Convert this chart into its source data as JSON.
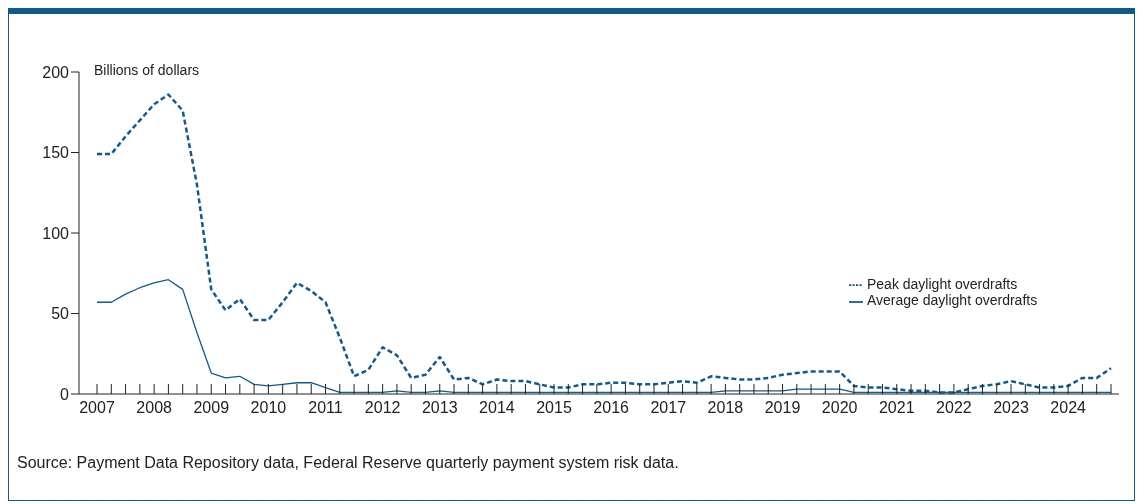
{
  "chart_data": {
    "type": "line",
    "ylabel": "Billions of dollars",
    "categories": [
      "2007",
      null,
      null,
      null,
      "2008",
      null,
      null,
      null,
      "2009",
      null,
      null,
      null,
      "2010",
      null,
      null,
      null,
      "2011",
      null,
      null,
      null,
      "2012",
      null,
      null,
      null,
      "2013",
      null,
      null,
      null,
      "2014",
      null,
      null,
      null,
      "2015",
      null,
      null,
      null,
      "2016",
      null,
      null,
      null,
      "2017",
      null,
      null,
      null,
      "2018",
      null,
      null,
      null,
      "2019",
      null,
      null,
      null,
      "2020",
      null,
      null,
      null,
      "2021",
      null,
      null,
      null,
      "2022",
      null,
      null,
      null,
      "2023",
      null,
      null,
      null,
      "2024",
      null,
      null,
      null
    ],
    "series": [
      {
        "name": "Peak daylight overdrafts",
        "color": "#0f5a8f",
        "line_style": "dashed",
        "values": [
          149,
          149,
          160,
          170,
          180,
          186,
          176,
          130,
          65,
          52,
          59,
          46,
          46,
          57,
          69,
          64,
          57,
          35,
          11,
          15,
          29,
          24,
          10,
          12,
          23,
          9,
          10,
          6,
          9,
          8,
          8,
          6,
          4,
          4,
          6,
          6,
          7,
          7,
          6,
          6,
          7,
          8,
          7,
          11,
          10,
          9,
          9,
          10,
          12,
          13,
          14,
          14,
          14,
          5,
          4,
          4,
          3,
          2,
          2,
          1,
          1,
          3,
          5,
          6,
          8,
          6,
          4,
          4,
          5,
          10,
          10,
          16
        ]
      },
      {
        "name": "Average daylight overdrafts",
        "color": "#0f5a8f",
        "line_style": "solid",
        "values": [
          57,
          57,
          62,
          66,
          69,
          71,
          65,
          38,
          13,
          10,
          11,
          6,
          5,
          6,
          7,
          7,
          4,
          1,
          1,
          1,
          1,
          2,
          1,
          1,
          2,
          1,
          1,
          1,
          1,
          1,
          1,
          1,
          1,
          1,
          1,
          1,
          1,
          1,
          1,
          1,
          1,
          1,
          1,
          1,
          2,
          2,
          2,
          2,
          2,
          3,
          3,
          3,
          3,
          1,
          1,
          1,
          1,
          1,
          1,
          1,
          1,
          1,
          1,
          1,
          1,
          1,
          1,
          1,
          1,
          1,
          1,
          1
        ]
      }
    ],
    "ylim": [
      0,
      200
    ],
    "yticks": [
      0,
      50,
      100,
      150,
      200
    ],
    "grid": false,
    "legend": "right",
    "marker": "none",
    "annotations": [
      "Source: Payment Data Repository data, Federal Reserve quarterly payment system risk data."
    ]
  }
}
